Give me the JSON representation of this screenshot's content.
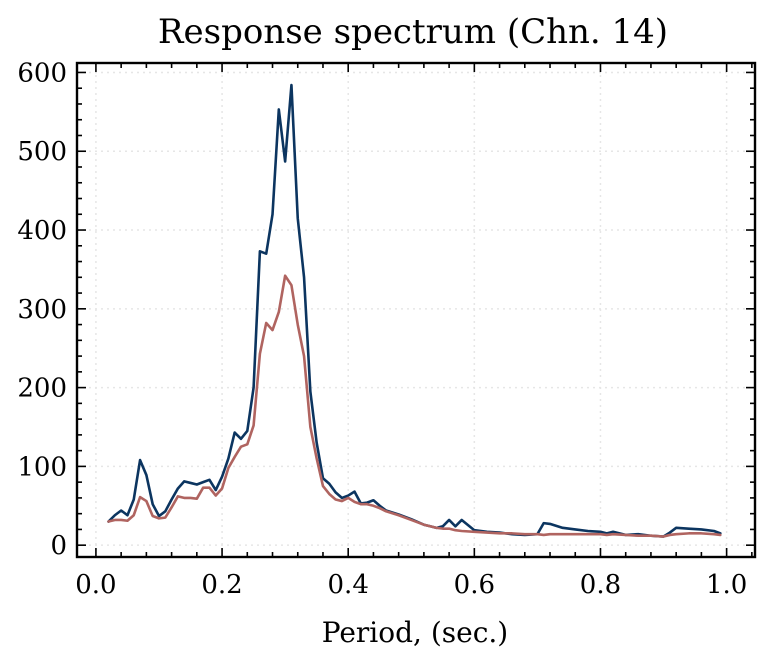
{
  "chart_data": {
    "type": "line",
    "title": "Response spectrum (Chn. 14)",
    "xlabel": "Period, (sec.)",
    "ylabel": "",
    "xlim": [
      -0.03,
      1.045
    ],
    "ylim": [
      -15,
      612
    ],
    "xticks": [
      0.0,
      0.2,
      0.4,
      0.6,
      0.8,
      1.0
    ],
    "xtick_labels": [
      "0.0",
      "0.2",
      "0.4",
      "0.6",
      "0.8",
      "1.0"
    ],
    "yticks": [
      0,
      100,
      200,
      300,
      400,
      500,
      600
    ],
    "ytick_labels": [
      "0",
      "100",
      "200",
      "300",
      "400",
      "500",
      "600"
    ],
    "grid": true,
    "series": [
      {
        "color": "#0c3560",
        "x": [
          0.02,
          0.03,
          0.04,
          0.05,
          0.06,
          0.07,
          0.08,
          0.09,
          0.1,
          0.11,
          0.12,
          0.13,
          0.14,
          0.15,
          0.16,
          0.17,
          0.18,
          0.19,
          0.2,
          0.21,
          0.22,
          0.23,
          0.24,
          0.25,
          0.26,
          0.27,
          0.28,
          0.29,
          0.3,
          0.31,
          0.32,
          0.33,
          0.34,
          0.35,
          0.36,
          0.37,
          0.38,
          0.39,
          0.4,
          0.41,
          0.42,
          0.43,
          0.44,
          0.45,
          0.46,
          0.48,
          0.5,
          0.52,
          0.53,
          0.54,
          0.55,
          0.56,
          0.57,
          0.58,
          0.6,
          0.62,
          0.64,
          0.66,
          0.68,
          0.7,
          0.71,
          0.72,
          0.74,
          0.76,
          0.78,
          0.8,
          0.81,
          0.82,
          0.84,
          0.86,
          0.88,
          0.9,
          0.91,
          0.92,
          0.94,
          0.96,
          0.98,
          0.99
        ],
        "values": [
          30,
          38,
          44,
          38,
          58,
          108,
          89,
          52,
          37,
          43,
          58,
          72,
          81,
          79,
          77,
          80,
          83,
          70,
          87,
          110,
          143,
          135,
          145,
          200,
          373,
          370,
          420,
          553,
          487,
          584,
          415,
          340,
          195,
          130,
          85,
          78,
          67,
          60,
          63,
          68,
          53,
          54,
          57,
          50,
          44,
          39,
          33,
          26,
          24,
          22,
          24,
          32,
          24,
          32,
          19,
          17,
          16,
          14,
          13,
          14,
          28,
          27,
          22,
          20,
          18,
          17,
          15,
          17,
          13,
          14,
          12,
          11,
          16,
          22,
          21,
          20,
          18,
          15
        ]
      },
      {
        "color": "#b06460",
        "x": [
          0.02,
          0.03,
          0.04,
          0.05,
          0.06,
          0.07,
          0.08,
          0.09,
          0.1,
          0.11,
          0.12,
          0.13,
          0.14,
          0.15,
          0.16,
          0.17,
          0.18,
          0.19,
          0.2,
          0.21,
          0.22,
          0.23,
          0.24,
          0.25,
          0.26,
          0.27,
          0.28,
          0.29,
          0.3,
          0.31,
          0.32,
          0.33,
          0.34,
          0.35,
          0.36,
          0.37,
          0.38,
          0.39,
          0.4,
          0.41,
          0.42,
          0.43,
          0.44,
          0.45,
          0.46,
          0.48,
          0.5,
          0.52,
          0.53,
          0.54,
          0.55,
          0.56,
          0.57,
          0.58,
          0.6,
          0.62,
          0.64,
          0.66,
          0.68,
          0.7,
          0.71,
          0.72,
          0.74,
          0.76,
          0.78,
          0.8,
          0.81,
          0.82,
          0.84,
          0.86,
          0.88,
          0.9,
          0.91,
          0.92,
          0.94,
          0.96,
          0.98,
          0.99
        ],
        "values": [
          30,
          32,
          32,
          31,
          38,
          61,
          56,
          37,
          34,
          35,
          48,
          62,
          60,
          60,
          59,
          73,
          73,
          63,
          72,
          98,
          112,
          125,
          128,
          152,
          243,
          282,
          273,
          296,
          342,
          330,
          280,
          240,
          150,
          110,
          75,
          65,
          58,
          56,
          60,
          55,
          52,
          52,
          50,
          47,
          43,
          38,
          32,
          26,
          24,
          22,
          21,
          21,
          19,
          18,
          17,
          16,
          15,
          15,
          14,
          14,
          13,
          14,
          14,
          14,
          14,
          14,
          13,
          14,
          13,
          12,
          12,
          11,
          13,
          14,
          15,
          15,
          14,
          13
        ]
      }
    ]
  }
}
